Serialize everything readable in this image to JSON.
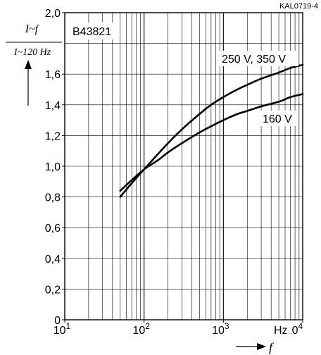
{
  "chart_data": {
    "type": "line",
    "code": "KAL0719-4",
    "part_number": "B43821",
    "ylabel_numerator": "I~f",
    "ylabel_denominator": "I~120 Hz",
    "xlabel": "f",
    "x_unit": "Hz",
    "x_scale": "log",
    "xlim": [
      10,
      10000
    ],
    "ylim": [
      0,
      2.0
    ],
    "grid": true,
    "x_ticks": [
      {
        "value": 10,
        "base": "10",
        "exp": "1"
      },
      {
        "value": 100,
        "base": "10",
        "exp": "2"
      },
      {
        "value": 1000,
        "base": "10",
        "exp": "3"
      },
      {
        "value": 10000,
        "base": "10",
        "exp": "4"
      }
    ],
    "y_ticks": [
      "0",
      "0,2",
      "0,4",
      "0,6",
      "0,8",
      "1,0",
      "1,2",
      "1,4",
      "1,6",
      "2,0"
    ],
    "y_tick_values": [
      0,
      0.2,
      0.4,
      0.6,
      0.8,
      1.0,
      1.2,
      1.4,
      1.6,
      2.0
    ],
    "series": [
      {
        "name": "250 V, 350 V",
        "x": [
          50,
          70,
          100,
          150,
          200,
          300,
          500,
          700,
          1000,
          1500,
          2000,
          3000,
          5000,
          7000,
          10000
        ],
        "y": [
          0.8,
          0.89,
          0.98,
          1.08,
          1.15,
          1.24,
          1.34,
          1.4,
          1.45,
          1.5,
          1.53,
          1.57,
          1.61,
          1.64,
          1.66
        ]
      },
      {
        "name": "160 V",
        "x": [
          50,
          70,
          100,
          150,
          200,
          300,
          500,
          700,
          1000,
          1500,
          2000,
          3000,
          5000,
          7000,
          10000
        ],
        "y": [
          0.84,
          0.91,
          0.98,
          1.04,
          1.09,
          1.15,
          1.22,
          1.26,
          1.3,
          1.34,
          1.36,
          1.39,
          1.42,
          1.45,
          1.47
        ]
      }
    ]
  }
}
